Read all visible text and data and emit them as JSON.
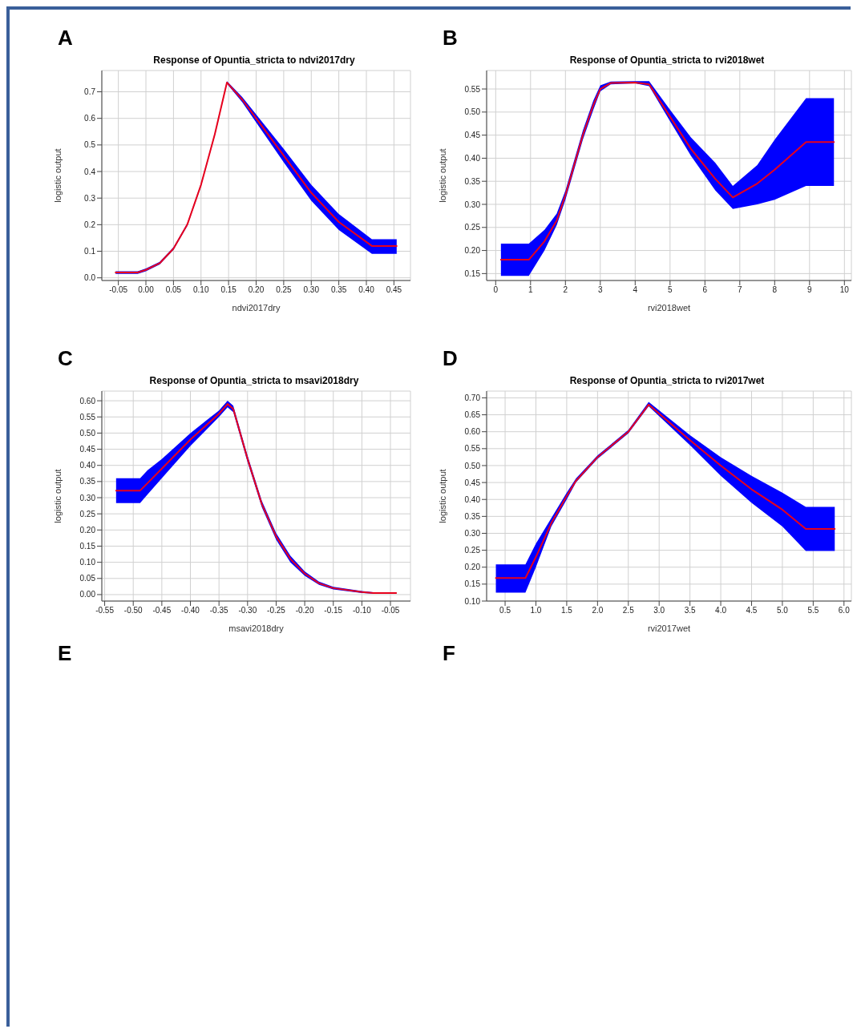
{
  "chart_data": [
    {
      "type": "line",
      "title": "Response of Opuntia_stricta to ndvi2017dry",
      "xlabel": "ndvi2017dry",
      "ylabel": "logistic output",
      "annotations": [
        "A"
      ],
      "grid": true,
      "marker": "none",
      "xlim": [
        -0.08,
        0.48
      ],
      "xticks": [
        {
          "value": -0.05,
          "label": "-0.05"
        },
        {
          "value": 0,
          "label": "0.00"
        },
        {
          "value": 0.05,
          "label": "0.05"
        },
        {
          "value": 0.1,
          "label": "0.10"
        },
        {
          "value": 0.15,
          "label": "0.15"
        },
        {
          "value": 0.2,
          "label": "0.20"
        },
        {
          "value": 0.25,
          "label": "0.25"
        },
        {
          "value": 0.3,
          "label": "0.30"
        },
        {
          "value": 0.35,
          "label": "0.35"
        },
        {
          "value": 0.4,
          "label": "0.40"
        },
        {
          "value": 0.45,
          "label": "0.45"
        }
      ],
      "ylim": [
        -0.01,
        0.78
      ],
      "yticks": [
        {
          "value": 0,
          "label": "0.0"
        },
        0.1,
        0.2,
        0.3,
        0.4,
        0.5,
        0.6,
        0.7
      ],
      "x": [
        -0.055,
        -0.015,
        0,
        0.025,
        0.05,
        0.075,
        0.1,
        0.125,
        0.147,
        0.175,
        0.2,
        0.25,
        0.3,
        0.35,
        0.41,
        0.455
      ],
      "series": [
        {
          "color": "#e8001c",
          "values": [
            0.02,
            0.02,
            0.03,
            0.055,
            0.11,
            0.2,
            0.35,
            0.54,
            0.735,
            0.67,
            0.6,
            0.46,
            0.32,
            0.21,
            0.12,
            0.12
          ],
          "lower": [
            0.015,
            0.015,
            0.025,
            0.05,
            0.105,
            0.195,
            0.345,
            0.535,
            0.73,
            0.66,
            0.585,
            0.435,
            0.29,
            0.18,
            0.09,
            0.09
          ],
          "upper": [
            0.025,
            0.025,
            0.035,
            0.06,
            0.115,
            0.205,
            0.355,
            0.545,
            0.74,
            0.68,
            0.615,
            0.485,
            0.35,
            0.24,
            0.145,
            0.145
          ]
        }
      ]
    },
    {
      "type": "line",
      "title": "Response of Opuntia_stricta to rvi2018wet",
      "xlabel": "rvi2018wet",
      "ylabel": "logistic output",
      "annotations": [
        "B"
      ],
      "grid": true,
      "marker": "none",
      "xlim": [
        -0.26,
        10.2
      ],
      "xticks": [
        0,
        1,
        2,
        3,
        4,
        5,
        6,
        7,
        8,
        9,
        10
      ],
      "ylim": [
        0.135,
        0.59
      ],
      "yticks": [
        {
          "value": 0.15,
          "label": "0.15"
        },
        {
          "value": 0.2,
          "label": "0.20"
        },
        {
          "value": 0.25,
          "label": "0.25"
        },
        {
          "value": 0.3,
          "label": "0.30"
        },
        {
          "value": 0.35,
          "label": "0.35"
        },
        {
          "value": 0.4,
          "label": "0.40"
        },
        {
          "value": 0.45,
          "label": "0.45"
        },
        {
          "value": 0.5,
          "label": "0.50"
        },
        {
          "value": 0.55,
          "label": "0.55"
        }
      ],
      "x": [
        0.15,
        0.95,
        1.4,
        1.75,
        2.0,
        2.5,
        2.8,
        3.0,
        3.3,
        4.0,
        4.4,
        5.0,
        5.6,
        6.3,
        6.8,
        7.5,
        8.0,
        8.9,
        9.7
      ],
      "series": [
        {
          "color": "#e8001c",
          "values": [
            0.18,
            0.18,
            0.22,
            0.265,
            0.32,
            0.45,
            0.515,
            0.55,
            0.563,
            0.564,
            0.56,
            0.49,
            0.42,
            0.355,
            0.315,
            0.345,
            0.375,
            0.435,
            0.435
          ],
          "lower": [
            0.145,
            0.145,
            0.2,
            0.255,
            0.31,
            0.44,
            0.505,
            0.545,
            0.56,
            0.562,
            0.556,
            0.48,
            0.405,
            0.33,
            0.29,
            0.3,
            0.31,
            0.34,
            0.34
          ],
          "upper": [
            0.215,
            0.215,
            0.245,
            0.28,
            0.33,
            0.46,
            0.525,
            0.558,
            0.566,
            0.567,
            0.567,
            0.505,
            0.445,
            0.39,
            0.34,
            0.385,
            0.44,
            0.53,
            0.53
          ]
        }
      ]
    },
    {
      "type": "line",
      "title": "Response of Opuntia_stricta to msavi2018dry",
      "xlabel": "msavi2018dry",
      "ylabel": "logistic output",
      "annotations": [
        "C",
        "E"
      ],
      "grid": true,
      "marker": "none",
      "xlim": [
        -0.555,
        -0.015
      ],
      "xticks": [
        -0.55,
        {
          "value": -0.5,
          "label": "-0.50"
        },
        -0.45,
        {
          "value": -0.4,
          "label": "-0.40"
        },
        -0.35,
        {
          "value": -0.3,
          "label": "-0.30"
        },
        -0.25,
        {
          "value": -0.2,
          "label": "-0.20"
        },
        -0.15,
        {
          "value": -0.1,
          "label": "-0.10"
        },
        -0.05
      ],
      "ylim": [
        -0.02,
        0.63
      ],
      "yticks": [
        {
          "value": 0,
          "label": "0.00"
        },
        0.05,
        {
          "value": 0.1,
          "label": "0.10"
        },
        0.15,
        {
          "value": 0.2,
          "label": "0.20"
        },
        0.25,
        {
          "value": 0.3,
          "label": "0.30"
        },
        0.35,
        {
          "value": 0.4,
          "label": "0.40"
        },
        0.45,
        {
          "value": 0.5,
          "label": "0.50"
        },
        0.55,
        {
          "value": 0.6,
          "label": "0.60"
        }
      ],
      "x": [
        -0.53,
        -0.488,
        -0.475,
        -0.45,
        -0.4,
        -0.35,
        -0.335,
        -0.325,
        -0.3,
        -0.275,
        -0.25,
        -0.225,
        -0.2,
        -0.175,
        -0.15,
        -0.1,
        -0.08,
        -0.04
      ],
      "series": [
        {
          "color": "#e8001c",
          "values": [
            0.322,
            0.322,
            0.345,
            0.39,
            0.48,
            0.56,
            0.59,
            0.575,
            0.42,
            0.28,
            0.18,
            0.11,
            0.065,
            0.035,
            0.02,
            0.008,
            0.005,
            0.005
          ],
          "lower": [
            0.283,
            0.283,
            0.31,
            0.36,
            0.46,
            0.55,
            0.58,
            0.565,
            0.41,
            0.27,
            0.17,
            0.1,
            0.058,
            0.03,
            0.016,
            0.005,
            0.003,
            0.003
          ],
          "upper": [
            0.36,
            0.36,
            0.385,
            0.42,
            0.5,
            0.57,
            0.6,
            0.585,
            0.43,
            0.29,
            0.19,
            0.12,
            0.072,
            0.04,
            0.024,
            0.011,
            0.007,
            0.007
          ]
        }
      ]
    },
    {
      "type": "line",
      "title": "Response of Opuntia_stricta to rvi2017wet",
      "xlabel": "rvi2017wet",
      "ylabel": "logistic output",
      "annotations": [
        "D",
        "F"
      ],
      "grid": true,
      "marker": "none",
      "xlim": [
        0.2,
        6.12
      ],
      "xticks": [
        0.5,
        {
          "value": 1,
          "label": "1.0"
        },
        1.5,
        {
          "value": 2,
          "label": "2.0"
        },
        2.5,
        {
          "value": 3,
          "label": "3.0"
        },
        3.5,
        {
          "value": 4,
          "label": "4.0"
        },
        4.5,
        {
          "value": 5,
          "label": "5.0"
        },
        5.5,
        {
          "value": 6,
          "label": "6.0"
        }
      ],
      "ylim": [
        0.1,
        0.72
      ],
      "yticks": [
        {
          "value": 0.1,
          "label": "0.10"
        },
        0.15,
        {
          "value": 0.2,
          "label": "0.20"
        },
        0.25,
        {
          "value": 0.3,
          "label": "0.30"
        },
        0.35,
        {
          "value": 0.4,
          "label": "0.40"
        },
        0.45,
        {
          "value": 0.5,
          "label": "0.50"
        },
        0.55,
        {
          "value": 0.6,
          "label": "0.60"
        },
        0.65,
        {
          "value": 0.7,
          "label": "0.70"
        }
      ],
      "x": [
        0.35,
        0.83,
        1.0,
        1.25,
        1.5,
        1.65,
        2.0,
        2.5,
        2.83,
        3.5,
        4.0,
        4.5,
        5.0,
        5.38,
        5.85
      ],
      "series": [
        {
          "color": "#e8001c",
          "values": [
            0.168,
            0.168,
            0.23,
            0.33,
            0.41,
            0.455,
            0.525,
            0.6,
            0.68,
            0.575,
            0.5,
            0.43,
            0.37,
            0.313,
            0.313
          ],
          "lower": [
            0.125,
            0.125,
            0.2,
            0.32,
            0.4,
            0.45,
            0.52,
            0.595,
            0.675,
            0.56,
            0.47,
            0.39,
            0.32,
            0.248,
            0.248
          ],
          "upper": [
            0.208,
            0.208,
            0.27,
            0.345,
            0.42,
            0.462,
            0.53,
            0.605,
            0.688,
            0.59,
            0.525,
            0.47,
            0.42,
            0.378,
            0.378
          ]
        }
      ]
    }
  ]
}
